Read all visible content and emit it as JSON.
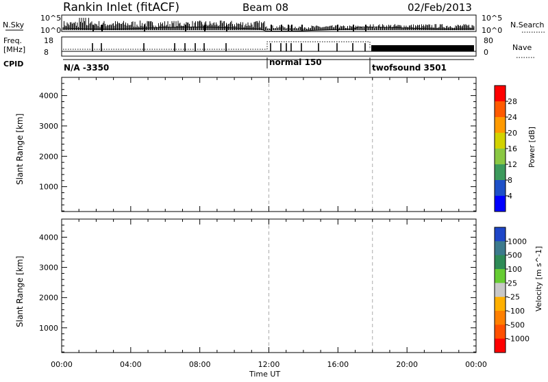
{
  "header": {
    "station": "Rankin Inlet (fitACF)",
    "beam": "Beam 08",
    "date": "02/Feb/2013"
  },
  "top_panels": {
    "nsky_label": "N.Sky",
    "nsky_ticks": [
      "10^5",
      "10^0"
    ],
    "nsearch_label": "N.Search",
    "nsearch_ticks": [
      "10^5",
      "10^0"
    ],
    "freq_label_1": "Freq.",
    "freq_label_2": "[MHz]",
    "freq_ticks": [
      "18",
      "8"
    ],
    "nave_label": "Nave",
    "nave_ticks": [
      "80",
      "0"
    ],
    "cpid_label": "CPID",
    "cpid_segments": [
      {
        "label": "N/A -3350",
        "start_hour": 0,
        "end_hour": 12
      },
      {
        "label": "normal 150",
        "start_hour": 12,
        "end_hour": 18
      },
      {
        "label": "twofsound 3501",
        "start_hour": 18,
        "end_hour": 24
      }
    ]
  },
  "x_axis": {
    "label": "Time UT",
    "ticks": [
      "00:00",
      "04:00",
      "08:00",
      "12:00",
      "16:00",
      "20:00",
      "00:00"
    ]
  },
  "chart_data": [
    {
      "type": "heatmap",
      "quantity": "power",
      "ylabel": "Slant Range [km]",
      "xlabel": "Time UT",
      "xlim_hours": [
        0,
        24
      ],
      "ylim": [
        180,
        4600
      ],
      "yticks": [
        1000,
        2000,
        3000,
        4000
      ],
      "colorbar_label": "Power [dB]",
      "colorbar_ticks": [
        "28",
        "24",
        "20",
        "16",
        "12",
        "8",
        "4"
      ],
      "colorbar_colors": [
        "#ff0000",
        "#ff5a00",
        "#ff9a00",
        "#d2d200",
        "#8ac843",
        "#3c9a5c",
        "#1e50c8",
        "#0000ff"
      ],
      "vertical_markers_hours": [
        12,
        18
      ]
    },
    {
      "type": "heatmap",
      "quantity": "velocity",
      "ylabel": "Slant Range [km]",
      "xlabel": "Time UT",
      "xlim_hours": [
        0,
        24
      ],
      "ylim": [
        180,
        4600
      ],
      "yticks": [
        1000,
        2000,
        3000,
        4000
      ],
      "colorbar_label": "Velocity [m s^-1]",
      "colorbar_ticks": [
        "1000",
        "500",
        "100",
        "25",
        "-25",
        "-100",
        "-500",
        "-1000"
      ],
      "colorbar_colors": [
        "#1e46c8",
        "#3c7a8c",
        "#2e8b57",
        "#66cc33",
        "#c8c8c8",
        "#ffb000",
        "#ff8000",
        "#ff5000",
        "#ff0000"
      ],
      "vertical_markers_hours": [
        12,
        18
      ]
    }
  ]
}
